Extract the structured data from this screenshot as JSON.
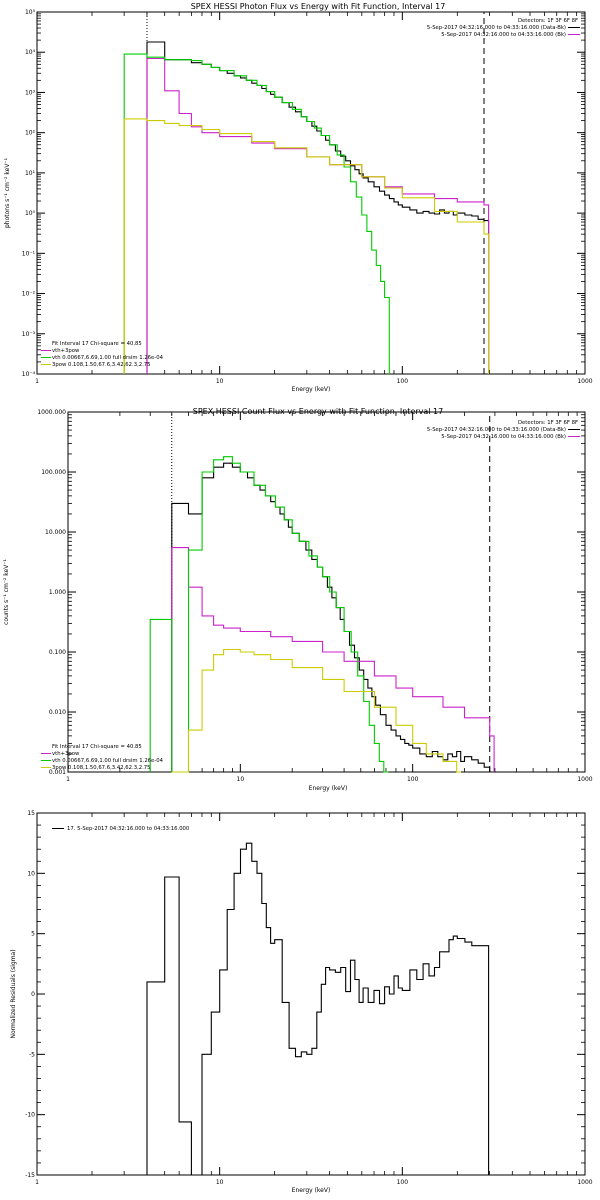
{
  "colors": {
    "data": "#000000",
    "total": "#cc22cc",
    "thermal": "#00cc00",
    "power": "#cccc00",
    "red": "#ee0000"
  },
  "chart_data": [
    {
      "type": "line",
      "title": "SPEX HESSI Photon Flux vs Energy with Fit Function, Interval 17",
      "xlabel": "Energy (keV)",
      "ylabel": "photons s⁻¹ cm⁻² keV⁻¹",
      "xscale": "log",
      "yscale": "log",
      "xlim": [
        1,
        1000
      ],
      "ylim": [
        0.0001,
        100000
      ],
      "xticks": [
        {
          "v": 1,
          "label": "1"
        },
        {
          "v": 10,
          "label": "10"
        },
        {
          "v": 100,
          "label": "100"
        },
        {
          "v": 1000,
          "label": "1000"
        }
      ],
      "yticks": [
        {
          "v": 0.0001,
          "label": "10⁻⁴"
        },
        {
          "v": 0.001,
          "label": "10⁻³"
        },
        {
          "v": 0.01,
          "label": "10⁻²"
        },
        {
          "v": 0.1,
          "label": "10⁻¹"
        },
        {
          "v": 1,
          "label": "10⁰"
        },
        {
          "v": 10,
          "label": "10¹"
        },
        {
          "v": 100,
          "label": "10²"
        },
        {
          "v": 1000,
          "label": "10³"
        },
        {
          "v": 10000,
          "label": "10⁴"
        },
        {
          "v": 100000,
          "label": "10⁵"
        }
      ],
      "vlines": [
        {
          "x": 4,
          "style": "dotted"
        },
        {
          "x": 280,
          "style": "dashed"
        }
      ],
      "legend_top_right": {
        "heading": "Detectors: 1F 3F 6F 8F",
        "rows": [
          {
            "text": "5-Sep-2017 04:32:16.000 to 04:33:16.000 (Data-Bk)",
            "color": "#000000"
          },
          {
            "text": "5-Sep-2017 04:32:16.000 to 04:33:16.000 (Bk)",
            "color": "#cc22cc"
          }
        ]
      },
      "legend_bottom_left": [
        {
          "text": "Fit Interval 17    Chi-square = 40.85",
          "color": ""
        },
        {
          "text": "vth+3pow",
          "color": "#cc22cc"
        },
        {
          "text": "vth 0.00667,6.69,1.00  full drsim 1.26e-04",
          "color": "#00cc00"
        },
        {
          "text": "3pow 0.108,1.50,67.6,3.42,62.3,2.75",
          "color": "#cccc00"
        }
      ],
      "series": [
        {
          "name": "data",
          "color": "#000000",
          "x": [
            4,
            5,
            6,
            7,
            8,
            9,
            10,
            11,
            12,
            13,
            14,
            15,
            16,
            17,
            18,
            19,
            20,
            22,
            24,
            26,
            28,
            30,
            32,
            34,
            36,
            38,
            40,
            43,
            46,
            49,
            52,
            55,
            58,
            61,
            65,
            70,
            75,
            80,
            85,
            90,
            95,
            100,
            110,
            120,
            130,
            140,
            150,
            160,
            170,
            180,
            190,
            200,
            220,
            240,
            260,
            280
          ],
          "y": [
            18000,
            6500,
            6500,
            5500,
            5000,
            4200,
            3500,
            3000,
            2600,
            2300,
            2000,
            1700,
            1500,
            1250,
            1050,
            900,
            760,
            560,
            430,
            330,
            250,
            190,
            145,
            110,
            85,
            65,
            50,
            35,
            26,
            20,
            15,
            12,
            9.5,
            7.5,
            6,
            4.5,
            3.5,
            2.8,
            2.3,
            1.9,
            1.6,
            1.4,
            1.2,
            1.0,
            1.1,
            1.0,
            0.95,
            1.2,
            1.0,
            1.1,
            0.9,
            1.0,
            0.9,
            0.85,
            0.7,
            0.65
          ]
        },
        {
          "name": "vth+3pow",
          "color": "#cc22cc",
          "x": [
            4,
            5,
            6,
            7,
            8,
            10,
            15,
            20,
            30,
            40,
            60,
            80,
            100,
            150,
            200,
            280
          ],
          "y": [
            7000,
            1100,
            300,
            140,
            100,
            80,
            55,
            40,
            25,
            16,
            8,
            4.5,
            3.0,
            2.3,
            1.9,
            1.6
          ]
        },
        {
          "name": "vth",
          "color": "#00cc00",
          "x": [
            3,
            4,
            5,
            6,
            7,
            8,
            9,
            10,
            12,
            14,
            16,
            18,
            20,
            22,
            25,
            28,
            30,
            33,
            36,
            40,
            44,
            48,
            52,
            56,
            60,
            64,
            68,
            72,
            76,
            80
          ],
          "y": [
            9000,
            7500,
            6500,
            6500,
            6200,
            5000,
            4200,
            3500,
            2600,
            2000,
            1500,
            1050,
            760,
            560,
            380,
            250,
            190,
            130,
            85,
            50,
            28,
            14,
            6,
            2.5,
            0.9,
            0.35,
            0.12,
            0.05,
            0.02,
            0.008
          ]
        },
        {
          "name": "3pow",
          "color": "#cccc00",
          "x": [
            3,
            4,
            5,
            6,
            8,
            10,
            15,
            20,
            30,
            40,
            60,
            80,
            100,
            150,
            200,
            280
          ],
          "y": [
            220,
            200,
            170,
            150,
            120,
            95,
            60,
            42,
            25,
            16,
            8,
            4.2,
            2.4,
            1.1,
            0.6,
            0.3
          ]
        }
      ]
    },
    {
      "type": "line",
      "title": "SPEX HESSI Count Flux vs Energy with Fit Function, Interval 17",
      "xlabel": "Energy (keV)",
      "ylabel": "counts s⁻¹ cm⁻² keV⁻¹",
      "xscale": "log",
      "yscale": "log",
      "xlim": [
        1,
        1000
      ],
      "ylim": [
        0.001,
        1000
      ],
      "xticks": [
        {
          "v": 1,
          "label": "1"
        },
        {
          "v": 10,
          "label": "10"
        },
        {
          "v": 100,
          "label": "100"
        },
        {
          "v": 1000,
          "label": "1000"
        }
      ],
      "yticks": [
        {
          "v": 0.001,
          "label": "0.001"
        },
        {
          "v": 0.01,
          "label": "0.010"
        },
        {
          "v": 0.1,
          "label": "0.100"
        },
        {
          "v": 1,
          "label": "1.000"
        },
        {
          "v": 10,
          "label": "10.000"
        },
        {
          "v": 100,
          "label": "100.000"
        },
        {
          "v": 1000,
          "label": "1000.000"
        }
      ],
      "vlines": [
        {
          "x": 4,
          "style": "dotted"
        },
        {
          "x": 280,
          "style": "dashed"
        }
      ],
      "legend_top_right": {
        "heading": "Detectors: 1F 3F 6F 8F",
        "rows": [
          {
            "text": "5-Sep-2017 04:32:16.000 to 04:33:16.000 (Data-Bk)",
            "color": "#000000"
          },
          {
            "text": "5-Sep-2017 04:32:16.000 to 04:33:16.000 (Bk)",
            "color": "#cc22cc"
          }
        ]
      },
      "legend_bottom_left": [
        {
          "text": "Fit Interval 17    Chi-square = 40.85",
          "color": ""
        },
        {
          "text": "vth+3pow",
          "color": "#cc22cc"
        },
        {
          "text": "vth 0.00667,6.69,1.00  full drsim 1.26e-04",
          "color": "#00cc00"
        },
        {
          "text": "3pow 0.108,1.50,67.6,3.42,62.3,2.75",
          "color": "#cccc00"
        }
      ],
      "series": [
        {
          "name": "data",
          "color": "#000000",
          "x": [
            4,
            5,
            6,
            7,
            8,
            9,
            10,
            11,
            12,
            13,
            14,
            15,
            16,
            17,
            18,
            19,
            20,
            22,
            24,
            26,
            28,
            30,
            32,
            34,
            36,
            38,
            40,
            43,
            46,
            49,
            52,
            55,
            58,
            61,
            65,
            70,
            75,
            80,
            85,
            90,
            95,
            100,
            110,
            120,
            130,
            140,
            150,
            160,
            170,
            180,
            190,
            200,
            220,
            240,
            260,
            280
          ],
          "y": [
            30,
            20,
            80,
            120,
            140,
            120,
            100,
            80,
            60,
            50,
            40,
            32,
            26,
            20,
            16,
            12,
            9.5,
            7,
            5,
            3.5,
            2.6,
            1.8,
            1.2,
            0.8,
            0.55,
            0.35,
            0.22,
            0.13,
            0.08,
            0.05,
            0.035,
            0.025,
            0.018,
            0.013,
            0.009,
            0.006,
            0.005,
            0.004,
            0.0035,
            0.003,
            0.0028,
            0.0025,
            0.002,
            0.0018,
            0.0022,
            0.0018,
            0.0016,
            0.002,
            0.0018,
            0.0022,
            0.0015,
            0.0018,
            0.0016,
            0.0014,
            0.0012,
            0.001
          ]
        },
        {
          "name": "vth+3pow",
          "color": "#cc22cc",
          "x": [
            4,
            5,
            6,
            7,
            8,
            10,
            15,
            20,
            30,
            40,
            60,
            80,
            100,
            150,
            200,
            280
          ],
          "y": [
            5.5,
            1.2,
            0.4,
            0.28,
            0.25,
            0.22,
            0.18,
            0.15,
            0.1,
            0.07,
            0.04,
            0.025,
            0.018,
            0.012,
            0.008,
            0.004
          ]
        },
        {
          "name": "vth",
          "color": "#00cc00",
          "x": [
            3,
            4,
            5,
            6,
            7,
            8,
            9,
            10,
            12,
            14,
            16,
            18,
            20,
            22,
            25,
            28,
            30,
            33,
            36,
            40,
            44,
            48,
            52,
            56,
            60,
            64,
            68
          ],
          "y": [
            0.35,
            0.001,
            5,
            100,
            160,
            180,
            140,
            100,
            60,
            40,
            26,
            16,
            9.5,
            7,
            4,
            2.6,
            1.8,
            1.0,
            0.55,
            0.22,
            0.1,
            0.04,
            0.015,
            0.006,
            0.003,
            0.0015,
            0.0008
          ]
        },
        {
          "name": "3pow",
          "color": "#cccc00",
          "x": [
            4,
            5,
            6,
            7,
            8,
            9,
            10,
            12,
            15,
            20,
            30,
            40,
            60,
            80,
            100,
            120,
            150,
            180
          ],
          "y": [
            0.001,
            0.005,
            0.05,
            0.09,
            0.11,
            0.11,
            0.1,
            0.09,
            0.075,
            0.055,
            0.035,
            0.022,
            0.012,
            0.006,
            0.003,
            0.002,
            0.0015,
            0.001
          ]
        }
      ]
    },
    {
      "type": "line",
      "title": "",
      "xlabel": "Energy (keV)",
      "ylabel": "Normalized Residuals (sigma)",
      "xscale": "log",
      "yscale": "linear",
      "xlim": [
        1,
        1000
      ],
      "ylim": [
        -15,
        15
      ],
      "xticks": [
        {
          "v": 1,
          "label": "1"
        },
        {
          "v": 10,
          "label": "10"
        },
        {
          "v": 100,
          "label": "100"
        },
        {
          "v": 1000,
          "label": "1000"
        }
      ],
      "yticks": [
        {
          "v": -15,
          "label": "-15"
        },
        {
          "v": -10,
          "label": "-10"
        },
        {
          "v": -5,
          "label": "-5"
        },
        {
          "v": 0,
          "label": "0"
        },
        {
          "v": 5,
          "label": "5"
        },
        {
          "v": 10,
          "label": "10"
        },
        {
          "v": 15,
          "label": "15"
        }
      ],
      "vlines": [],
      "legend_top_left": [
        {
          "text": "17.  5-Sep-2017 04:32:16.000 to 04:33:16.000",
          "color": "#000000"
        }
      ],
      "series": [
        {
          "name": "",
          "color": "#000000",
          "x": [
            4,
            5,
            6,
            7,
            8,
            9,
            10,
            11,
            12,
            13,
            14,
            15,
            16,
            17,
            18,
            19,
            20,
            22,
            24,
            26,
            28,
            30,
            32,
            34,
            36,
            38,
            40,
            43,
            46,
            49,
            52,
            55,
            58,
            61,
            65,
            70,
            75,
            80,
            85,
            90,
            95,
            100,
            110,
            120,
            130,
            140,
            150,
            160,
            170,
            180,
            190,
            200,
            220,
            240,
            260,
            280
          ],
          "y": [
            1,
            9.7,
            -10.6,
            -15,
            -5,
            -1.5,
            2,
            7,
            10,
            12,
            12.5,
            11,
            10,
            7.5,
            5.5,
            4.2,
            4.5,
            -0.7,
            -4.5,
            -5.2,
            -4.8,
            -5,
            -4.5,
            -1.5,
            0.8,
            2.2,
            2.0,
            1.8,
            2.2,
            0.2,
            2.8,
            1.2,
            -0.7,
            0.5,
            -0.7,
            0.3,
            -0.8,
            0.6,
            0.0,
            1.5,
            0.5,
            0.3,
            2.0,
            1.2,
            2.5,
            1.5,
            2.2,
            3.5,
            3.5,
            4.5,
            4.8,
            4.6,
            4.3,
            4.0,
            4.0,
            4.0
          ]
        }
      ]
    }
  ]
}
